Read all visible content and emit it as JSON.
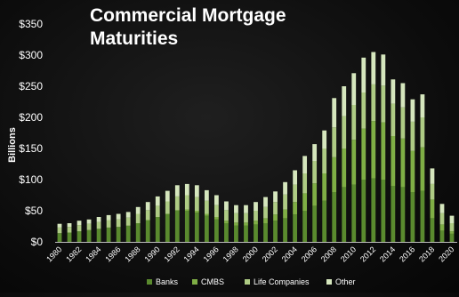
{
  "chart_data": {
    "type": "bar",
    "stacked": true,
    "title": [
      "Commercial Mortgage",
      "Maturities"
    ],
    "ylabel": "Billions",
    "xlabel": "",
    "ylim": [
      0,
      350
    ],
    "yticks": [
      "$0",
      "$50",
      "$100",
      "$150",
      "$200",
      "$250",
      "$300",
      "$350"
    ],
    "ytick_values": [
      0,
      50,
      100,
      150,
      200,
      250,
      300,
      350
    ],
    "xticks": [
      "1980",
      "1982",
      "1984",
      "1986",
      "1988",
      "1990",
      "1992",
      "1994",
      "1996",
      "1998",
      "2000",
      "2002",
      "2004",
      "2006",
      "2008",
      "2010",
      "2012",
      "2014",
      "2016",
      "2018",
      "2020"
    ],
    "grid": false,
    "legend_position": "bottom",
    "categories": [
      "1980",
      "1981",
      "1982",
      "1983",
      "1984",
      "1985",
      "1986",
      "1987",
      "1988",
      "1989",
      "1990",
      "1991",
      "1992",
      "1993",
      "1994",
      "1995",
      "1996",
      "1997",
      "1998",
      "1999",
      "2000",
      "2001",
      "2002",
      "2003",
      "2004",
      "2005",
      "2006",
      "2007",
      "2008",
      "2009",
      "2010",
      "2011",
      "2012",
      "2013",
      "2014",
      "2015",
      "2016",
      "2017",
      "2018",
      "2019",
      "2020"
    ],
    "series": [
      {
        "name": "Banks",
        "color": "#5a8a2e",
        "values": [
          14,
          15,
          17,
          19,
          21,
          23,
          24,
          26,
          30,
          35,
          40,
          45,
          50,
          50,
          47,
          42,
          36,
          30,
          26,
          26,
          28,
          30,
          34,
          38,
          44,
          50,
          58,
          66,
          80,
          88,
          92,
          100,
          102,
          100,
          90,
          88,
          80,
          82,
          38,
          18,
          13
        ]
      },
      {
        "name": "CMBS",
        "color": "#7fae45",
        "values": [
          0,
          0,
          0,
          0,
          0,
          0,
          0,
          0,
          0,
          0,
          0,
          0,
          1,
          2,
          3,
          3,
          4,
          4,
          5,
          5,
          6,
          8,
          10,
          14,
          20,
          28,
          36,
          44,
          56,
          62,
          72,
          82,
          92,
          92,
          80,
          78,
          66,
          70,
          30,
          10,
          4
        ]
      },
      {
        "name": "Life Companies",
        "color": "#aecb84",
        "values": [
          9,
          9,
          10,
          10,
          11,
          12,
          12,
          13,
          15,
          16,
          18,
          20,
          22,
          23,
          22,
          21,
          19,
          17,
          15,
          15,
          16,
          18,
          20,
          24,
          28,
          32,
          36,
          40,
          48,
          52,
          56,
          58,
          59,
          59,
          52,
          50,
          47,
          48,
          25,
          18,
          13
        ]
      },
      {
        "name": "Other",
        "color": "#d5e6bd",
        "values": [
          6,
          6,
          7,
          7,
          8,
          8,
          9,
          9,
          11,
          13,
          15,
          17,
          18,
          18,
          19,
          17,
          16,
          14,
          13,
          13,
          14,
          16,
          17,
          20,
          23,
          28,
          27,
          29,
          47,
          48,
          51,
          56,
          52,
          50,
          39,
          39,
          36,
          37,
          25,
          15,
          12
        ]
      }
    ]
  }
}
